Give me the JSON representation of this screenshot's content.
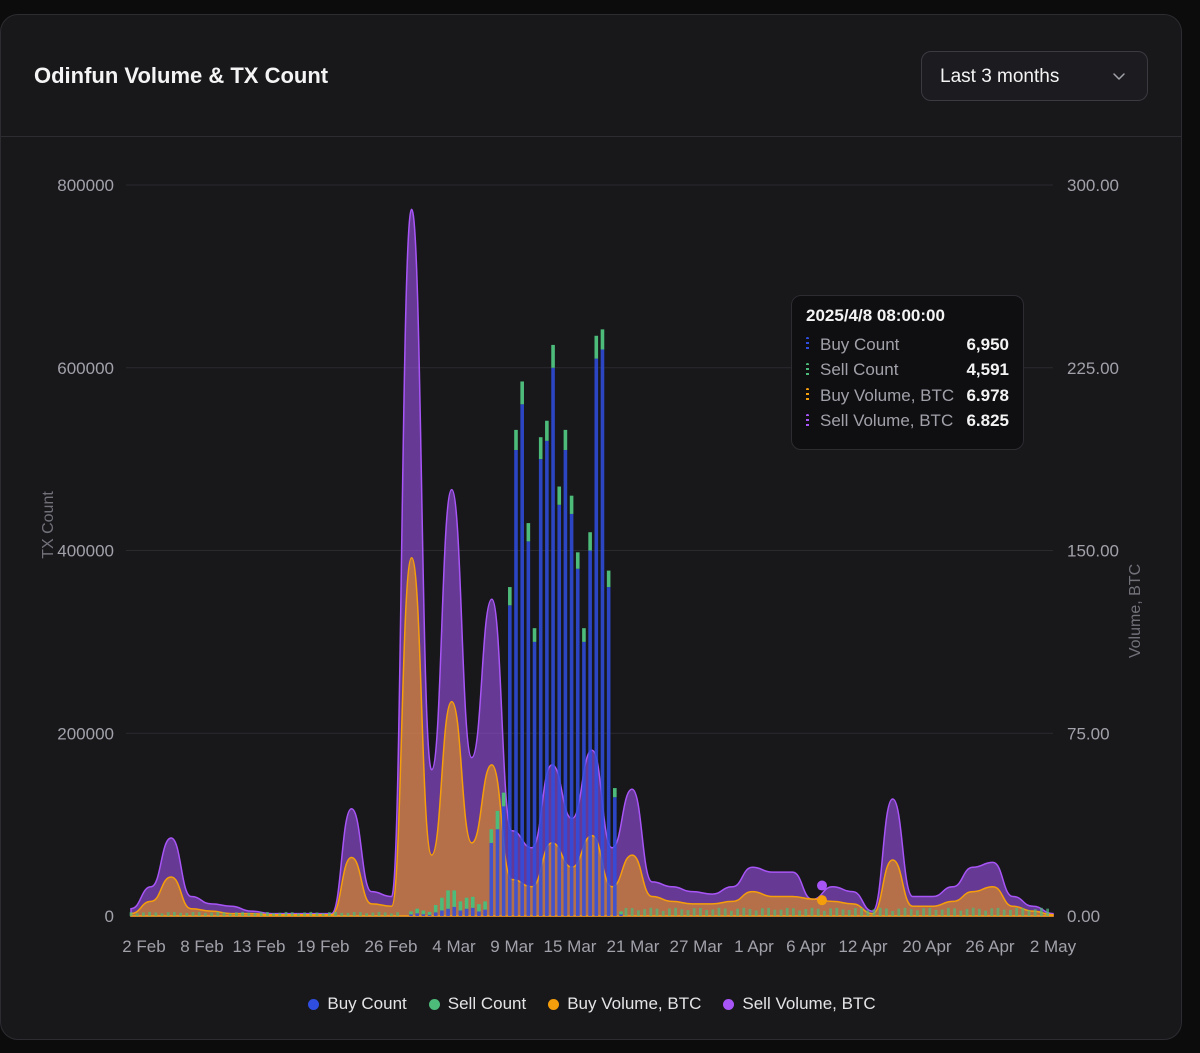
{
  "card": {
    "title": "Odinfun Volume & TX Count",
    "range_select": {
      "value": "Last 3 months",
      "icon": "chevron-down-icon"
    }
  },
  "colors": {
    "buy_count": "#2f4ee0",
    "sell_count": "#4dbb7a",
    "buy_volume": "#f59e0b",
    "sell_volume": "#a855f7"
  },
  "chart_data": {
    "type": "bar",
    "title": "Odinfun Volume & TX Count",
    "y_left": {
      "label": "TX Count",
      "ticks": [
        "800000",
        "600000",
        "400000",
        "200000",
        "0"
      ],
      "range": [
        0,
        800000
      ]
    },
    "y_right": {
      "label": "Volume, BTC",
      "ticks": [
        "300.00",
        "225.00",
        "150.00",
        "75.00",
        "0.00"
      ],
      "range": [
        0,
        300
      ]
    },
    "x_ticks": [
      "2 Feb",
      "8 Feb",
      "13 Feb",
      "19 Feb",
      "26 Feb",
      "4 Mar",
      "9 Mar",
      "15 Mar",
      "21 Mar",
      "27 Mar",
      "1 Apr",
      "6 Apr",
      "12 Apr",
      "20 Apr",
      "26 Apr",
      "2 May"
    ],
    "grid": true,
    "legend_position": "bottom",
    "series": [
      {
        "name": "Buy Count",
        "type": "bar",
        "axis": "left",
        "values": [
          2000,
          3000,
          2000,
          1500,
          4000,
          6000,
          8000,
          10000,
          6000,
          8000,
          9000,
          5000,
          7000,
          80000,
          95000,
          120000,
          340000,
          510000,
          560000,
          410000,
          300000,
          500000,
          520000,
          600000,
          450000,
          510000,
          440000,
          380000,
          300000,
          400000,
          610000,
          620000,
          360000,
          130000,
          3000
        ]
      },
      {
        "name": "Sell Count",
        "type": "bar",
        "axis": "left",
        "values": [
          3000,
          5000,
          4000,
          3000,
          8000,
          14000,
          20000,
          18000,
          10000,
          12000,
          12000,
          8000,
          9000,
          15000,
          20000,
          15000,
          20000,
          22000,
          25000,
          20000,
          15000,
          24000,
          22000,
          25000,
          20000,
          22000,
          20000,
          18000,
          15000,
          20000,
          25000,
          22000,
          18000,
          10000,
          2000
        ]
      },
      {
        "name": "Buy Volume, BTC",
        "type": "area",
        "axis": "right"
      },
      {
        "name": "Sell Volume, BTC",
        "type": "area",
        "axis": "right"
      }
    ],
    "volume_series": {
      "x": [
        "2 Feb",
        "4 Feb",
        "6 Feb",
        "8 Feb",
        "10 Feb",
        "13 Feb",
        "16 Feb",
        "19 Feb",
        "22 Feb",
        "24 Feb",
        "26 Feb",
        "28 Feb",
        "1 Mar",
        "2 Mar",
        "3 Mar",
        "4 Mar",
        "5 Mar",
        "6 Mar",
        "7 Mar",
        "8 Mar",
        "9 Mar",
        "11 Mar",
        "13 Mar",
        "15 Mar",
        "17 Mar",
        "19 Mar",
        "21 Mar",
        "23 Mar",
        "25 Mar",
        "27 Mar",
        "29 Mar",
        "1 Apr",
        "3 Apr",
        "6 Apr",
        "8 Apr",
        "10 Apr",
        "12 Apr",
        "14 Apr",
        "16 Apr",
        "18 Apr",
        "20 Apr",
        "22 Apr",
        "24 Apr",
        "26 Apr",
        "28 Apr",
        "30 Apr",
        "2 May"
      ],
      "sell": [
        3,
        12,
        32,
        8,
        5,
        4,
        2,
        1,
        1,
        1,
        1,
        44,
        10,
        8,
        290,
        60,
        175,
        65,
        130,
        35,
        28,
        62,
        40,
        68,
        28,
        52,
        14,
        12,
        10,
        9,
        12,
        20,
        18,
        18,
        6.825,
        12,
        10,
        2,
        48,
        8,
        8,
        12,
        20,
        22,
        8,
        4,
        1
      ],
      "buy": [
        1,
        6,
        16,
        3,
        2,
        1,
        1,
        0.5,
        0.5,
        0.5,
        0.5,
        24,
        5,
        4,
        147,
        25,
        88,
        30,
        62,
        15,
        12,
        30,
        20,
        33,
        12,
        25,
        8,
        6,
        5,
        5,
        6,
        10,
        8,
        8,
        6.978,
        6,
        5,
        1,
        23,
        4,
        4,
        6,
        10,
        12,
        4,
        2,
        0.5
      ]
    },
    "tooltip": {
      "title": "2025/4/8 08:00:00",
      "rows": [
        {
          "name": "Buy Count",
          "value": "6,950"
        },
        {
          "name": "Sell Count",
          "value": "4,591"
        },
        {
          "name": "Buy Volume, BTC",
          "value": "6.978"
        },
        {
          "name": "Sell Volume, BTC",
          "value": "6.825"
        }
      ]
    }
  },
  "legend": [
    "Buy Count",
    "Sell Count",
    "Buy Volume, BTC",
    "Sell Volume, BTC"
  ]
}
